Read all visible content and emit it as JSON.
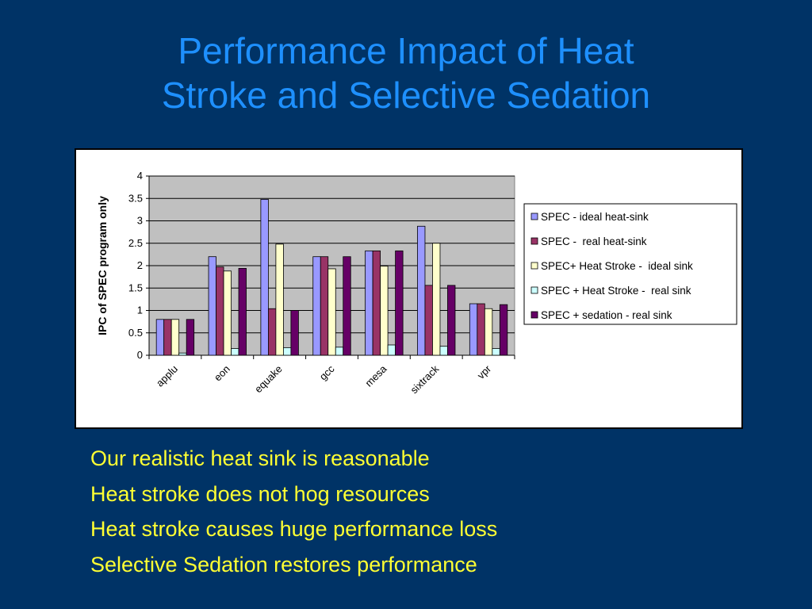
{
  "title_lines": [
    "Performance Impact of Heat",
    "Stroke and Selective Sedation"
  ],
  "bullets": [
    "Our realistic heat sink is reasonable",
    "Heat stroke does not hog resources",
    "Heat stroke causes huge performance loss",
    "Selective Sedation restores performance"
  ],
  "colors": {
    "background": "#003366",
    "title": "#1E90FF",
    "bullets": "#FFFF33",
    "plot_area": "#C0C0C0"
  },
  "chart_data": {
    "type": "bar",
    "ylabel": "IPC of SPEC program only",
    "xlabel": "",
    "ylim": [
      0,
      4
    ],
    "yticks": [
      "0",
      "0.5",
      "1",
      "1.5",
      "2",
      "2.5",
      "3",
      "3.5",
      "4"
    ],
    "grid": true,
    "legend_position": "right",
    "categories": [
      "applu",
      "eon",
      "equake",
      "gcc",
      "mesa",
      "sixtrack",
      "vpr"
    ],
    "series": [
      {
        "name": "SPEC - ideal heat-sink",
        "color": "#9999FF",
        "values": [
          0.8,
          2.2,
          3.48,
          2.2,
          2.33,
          2.88,
          1.15
        ]
      },
      {
        "name": "SPEC -  real heat-sink",
        "color": "#993366",
        "values": [
          0.8,
          1.97,
          1.04,
          2.2,
          2.33,
          1.56,
          1.15
        ]
      },
      {
        "name": "SPEC+ Heat Stroke -  ideal sink",
        "color": "#FFFFCC",
        "values": [
          0.8,
          1.88,
          2.48,
          1.93,
          1.99,
          2.5,
          1.04
        ]
      },
      {
        "name": "SPEC + Heat Stroke -  real sink",
        "color": "#CCFFFF",
        "values": [
          0.05,
          0.15,
          0.17,
          0.18,
          0.23,
          0.2,
          0.15
        ]
      },
      {
        "name": "SPEC + sedation - real sink",
        "color": "#660066",
        "values": [
          0.8,
          1.94,
          1.0,
          2.2,
          2.33,
          1.56,
          1.13
        ]
      }
    ]
  }
}
